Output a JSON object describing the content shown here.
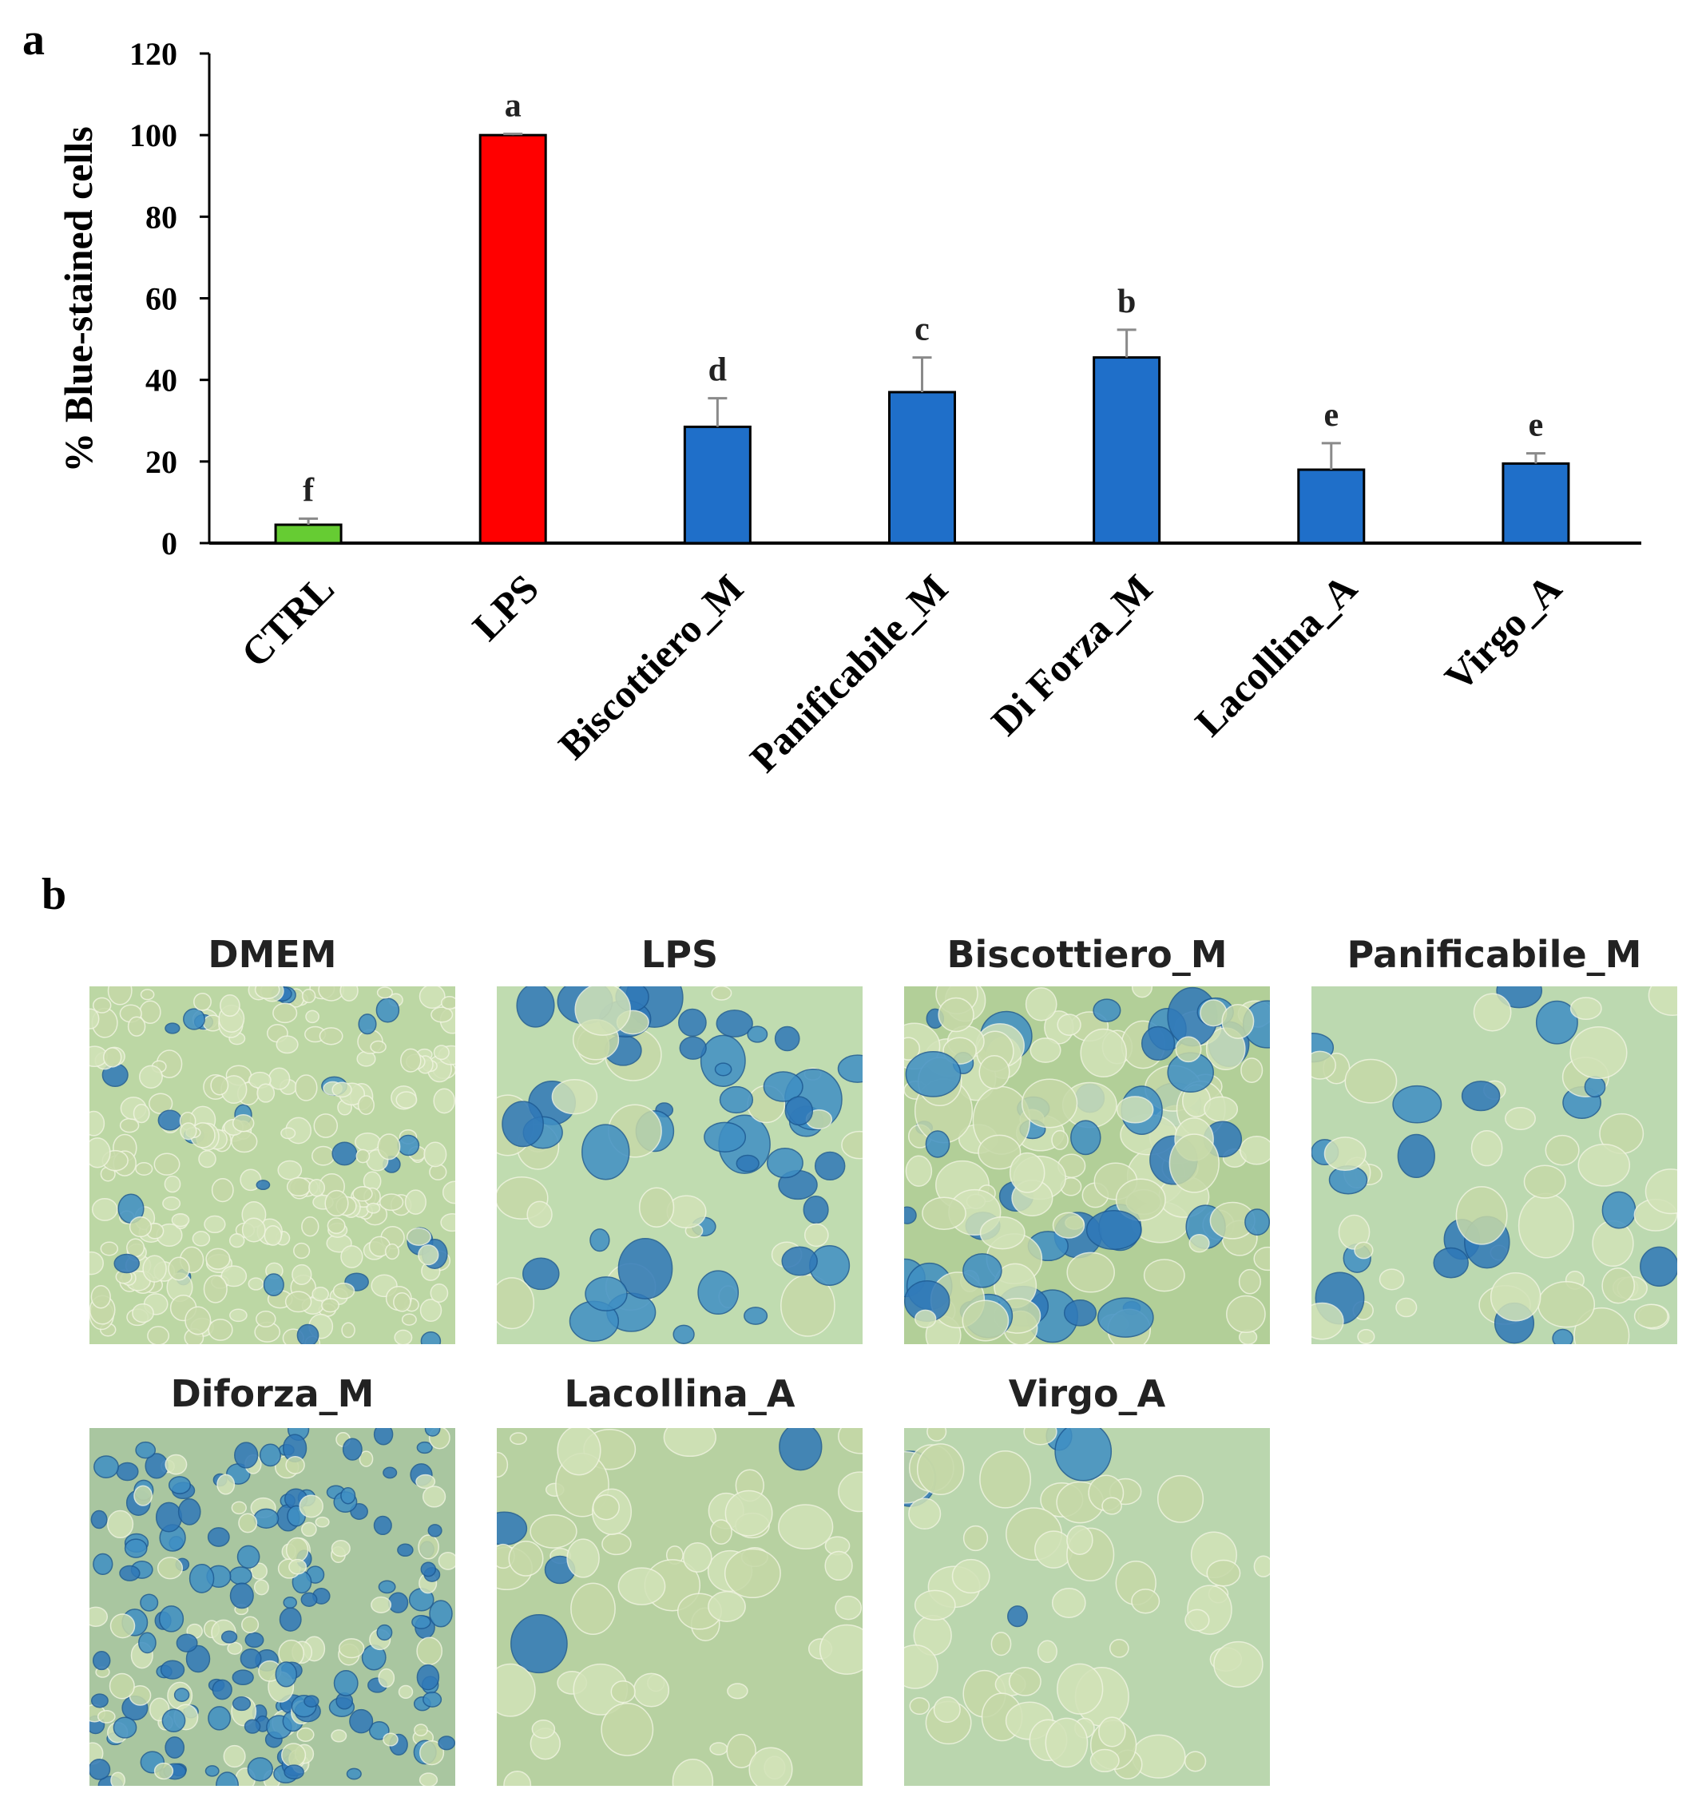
{
  "panel_a_label": "a",
  "panel_b_label": "b",
  "chart_data": {
    "type": "bar",
    "title": "",
    "xlabel": "",
    "ylabel": "% Blue-stained cells",
    "ylim": [
      0,
      120
    ],
    "yticks": [
      0,
      20,
      40,
      60,
      80,
      100,
      120
    ],
    "grid": false,
    "categories": [
      "CTRL",
      "LPS",
      "Biscottiero_M",
      "Panificabile_M",
      "Di Forza_M",
      "Lacollina_A",
      "Virgo_A"
    ],
    "values": [
      4.5,
      100,
      28.5,
      37,
      45.5,
      18,
      19.5
    ],
    "errors": [
      1.5,
      0.3,
      7,
      8.5,
      6.8,
      6.5,
      2.5
    ],
    "letters": [
      "f",
      "a",
      "d",
      "c",
      "b",
      "e",
      "e"
    ],
    "colors": [
      "#66cc33",
      "#ff0000",
      "#1f6fc9",
      "#1f6fc9",
      "#1f6fc9",
      "#1f6fc9",
      "#1f6fc9"
    ]
  },
  "micrographs": [
    {
      "label": "DMEM",
      "density": "confluent",
      "stain": "low"
    },
    {
      "label": "LPS",
      "density": "clustered",
      "stain": "high"
    },
    {
      "label": "Biscottiero_M",
      "density": "network",
      "stain": "medium"
    },
    {
      "label": "Panificabile_M",
      "density": "sparse",
      "stain": "medium"
    },
    {
      "label": "Diforza_M",
      "density": "dense",
      "stain": "high"
    },
    {
      "label": "Lacollina_A",
      "density": "sparse",
      "stain": "low"
    },
    {
      "label": "Virgo_A",
      "density": "sparse",
      "stain": "low"
    }
  ]
}
